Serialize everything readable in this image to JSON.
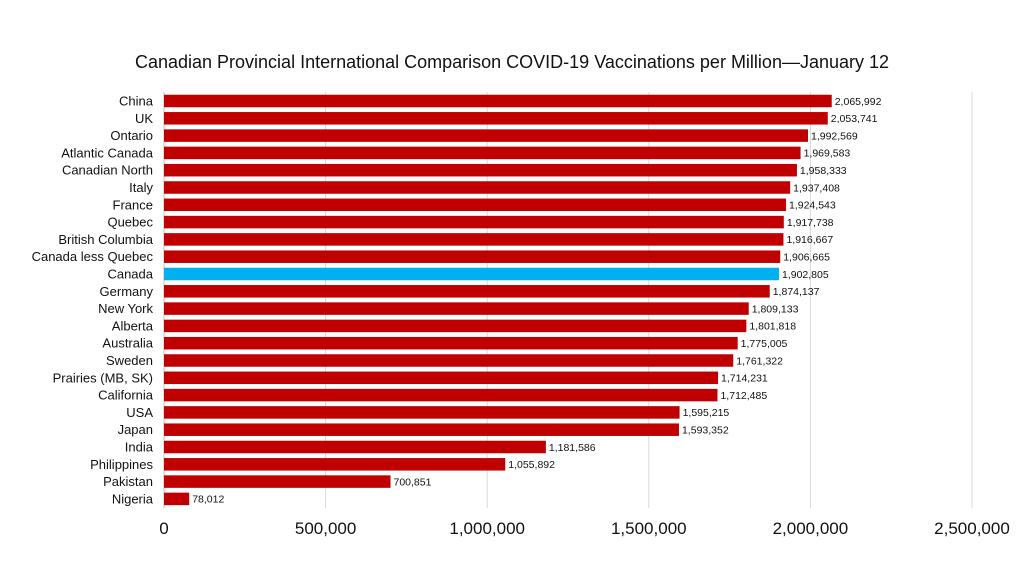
{
  "chart_data": {
    "type": "bar",
    "orientation": "horizontal",
    "title": "Canadian Provincial International Comparison COVID-19 Vaccinations per Million—January 12",
    "xlabel": "",
    "ylabel": "",
    "xlim": [
      0,
      2500000
    ],
    "xticks": [
      0,
      500000,
      1000000,
      1500000,
      2000000,
      2500000
    ],
    "xtick_labels": [
      "0",
      "500,000",
      "1,000,000",
      "1,500,000",
      "2,000,000",
      "2,500,000"
    ],
    "grid": "vertical",
    "colors": {
      "default": "#c00000",
      "highlight": "#00b0f0"
    },
    "highlight_category": "Canada",
    "categories": [
      "China",
      "UK",
      "Ontario",
      "Atlantic Canada",
      "Canadian North",
      "Italy",
      "France",
      "Quebec",
      "British Columbia",
      "Canada less Quebec",
      "Canada",
      "Germany",
      "New York",
      "Alberta",
      "Australia",
      "Sweden",
      "Prairies (MB, SK)",
      "California",
      "USA",
      "Japan",
      "India",
      "Philippines",
      "Pakistan",
      "Nigeria"
    ],
    "values": [
      2065992,
      2053741,
      1992569,
      1969583,
      1958333,
      1937408,
      1924543,
      1917738,
      1916667,
      1906665,
      1902805,
      1874137,
      1809133,
      1801818,
      1775005,
      1761322,
      1714231,
      1712485,
      1595215,
      1593352,
      1181586,
      1055892,
      700851,
      78012
    ],
    "value_labels": [
      "2,065,992",
      "2,053,741",
      "1,992,569",
      "1,969,583",
      "1,958,333",
      "1,937,408",
      "1,924,543",
      "1,917,738",
      "1,916,667",
      "1,906,665",
      "1,902,805",
      "1,874,137",
      "1,809,133",
      "1,801,818",
      "1,775,005",
      "1,761,322",
      "1,714,231",
      "1,712,485",
      "1,595,215",
      "1,593,352",
      "1,181,586",
      "1,055,892",
      "700,851",
      "78,012"
    ]
  }
}
